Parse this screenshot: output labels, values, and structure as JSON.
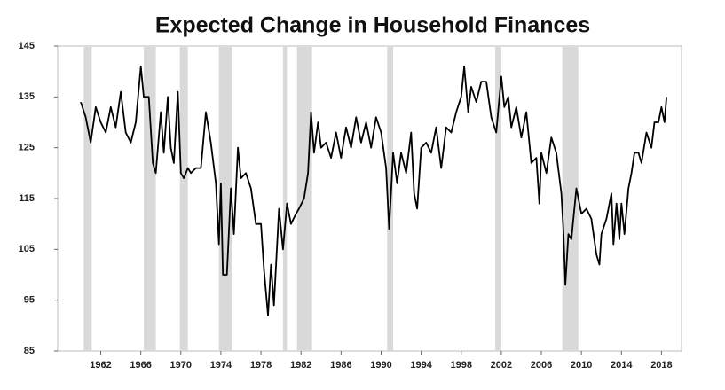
{
  "chart_data": {
    "type": "line",
    "title": "Expected Change in Household Finances",
    "x": [
      1960.0,
      1960.5,
      1961.0,
      1961.5,
      1962.0,
      1962.5,
      1963.0,
      1963.5,
      1964.0,
      1964.5,
      1965.0,
      1965.5,
      1966.0,
      1966.3,
      1966.8,
      1967.2,
      1967.5,
      1968.0,
      1968.3,
      1968.7,
      1969.0,
      1969.3,
      1969.7,
      1970.0,
      1970.3,
      1970.7,
      1971.0,
      1971.5,
      1972.0,
      1972.5,
      1973.0,
      1973.5,
      1973.8,
      1974.0,
      1974.2,
      1974.6,
      1975.0,
      1975.3,
      1975.7,
      1976.0,
      1976.5,
      1977.0,
      1977.5,
      1978.0,
      1978.3,
      1978.7,
      1979.0,
      1979.3,
      1979.8,
      1980.2,
      1980.6,
      1981.0,
      1981.5,
      1981.8,
      1982.3,
      1982.7,
      1983.0,
      1983.3,
      1983.7,
      1984.0,
      1984.5,
      1985.0,
      1985.5,
      1986.0,
      1986.5,
      1987.0,
      1987.5,
      1988.0,
      1988.5,
      1989.0,
      1989.5,
      1990.0,
      1990.5,
      1990.8,
      1991.2,
      1991.6,
      1992.0,
      1992.5,
      1993.0,
      1993.3,
      1993.6,
      1994.0,
      1994.5,
      1995.0,
      1995.5,
      1996.0,
      1996.5,
      1997.0,
      1997.5,
      1998.0,
      1998.3,
      1998.7,
      1999.0,
      1999.5,
      2000.0,
      2000.5,
      2001.0,
      2001.5,
      2002.0,
      2002.3,
      2002.7,
      2003.0,
      2003.5,
      2004.0,
      2004.5,
      2005.0,
      2005.5,
      2005.8,
      2006.0,
      2006.5,
      2007.0,
      2007.5,
      2008.0,
      2008.2,
      2008.4,
      2008.7,
      2009.0,
      2009.5,
      2010.0,
      2010.5,
      2011.0,
      2011.5,
      2011.8,
      2012.0,
      2012.5,
      2013.0,
      2013.2,
      2013.5,
      2013.8,
      2014.0,
      2014.3,
      2014.7,
      2015.0,
      2015.3,
      2015.7,
      2016.0,
      2016.5,
      2017.0,
      2017.3,
      2017.7,
      2018.0,
      2018.3,
      2018.5
    ],
    "values": [
      134,
      131,
      126,
      133,
      130,
      128,
      133,
      129,
      136,
      128,
      126,
      130,
      141,
      135,
      135,
      122,
      120,
      132,
      124,
      135,
      125,
      122,
      136,
      120,
      119,
      121,
      120,
      121,
      121,
      132,
      126,
      118,
      106,
      118,
      100,
      100,
      117,
      108,
      125,
      119,
      120,
      117,
      110,
      110,
      101,
      92,
      102,
      94,
      113,
      105,
      114,
      110,
      112,
      113,
      115,
      120,
      132,
      124,
      130,
      125,
      126,
      123,
      128,
      123,
      129,
      125,
      131,
      126,
      130,
      125,
      131,
      128,
      121,
      109,
      124,
      118,
      124,
      120,
      128,
      116,
      113,
      125,
      126,
      124,
      129,
      121,
      129,
      128,
      132,
      135,
      141,
      132,
      137,
      134,
      138,
      138,
      131,
      128,
      139,
      133,
      135,
      129,
      133,
      127,
      132,
      122,
      123,
      114,
      124,
      120,
      127,
      124,
      116,
      109,
      98,
      108,
      107,
      117,
      112,
      113,
      111,
      104,
      102,
      108,
      111,
      116,
      106,
      114,
      107,
      114,
      108,
      117,
      120,
      124,
      124,
      122,
      128,
      125,
      130,
      130,
      133,
      130,
      135
    ],
    "color": "#000000",
    "recessions": [
      [
        1960.3,
        1961.1
      ],
      [
        1966.3,
        1967.5
      ],
      [
        1969.9,
        1970.7
      ],
      [
        1973.8,
        1975.1
      ],
      [
        1980.2,
        1980.6
      ],
      [
        1981.6,
        1983.1
      ],
      [
        1990.6,
        1991.2
      ],
      [
        2001.4,
        2002.0
      ],
      [
        2008.1,
        2009.7
      ]
    ],
    "recession_color": "#d9d9d9",
    "xlim": [
      1957.7,
      2020
    ],
    "xticks": [
      1962,
      1966,
      1970,
      1974,
      1978,
      1982,
      1986,
      1990,
      1994,
      1998,
      2002,
      2006,
      2010,
      2014,
      2018
    ],
    "ylim": [
      85,
      145
    ],
    "yticks": [
      85,
      95,
      105,
      115,
      125,
      135,
      145
    ]
  }
}
